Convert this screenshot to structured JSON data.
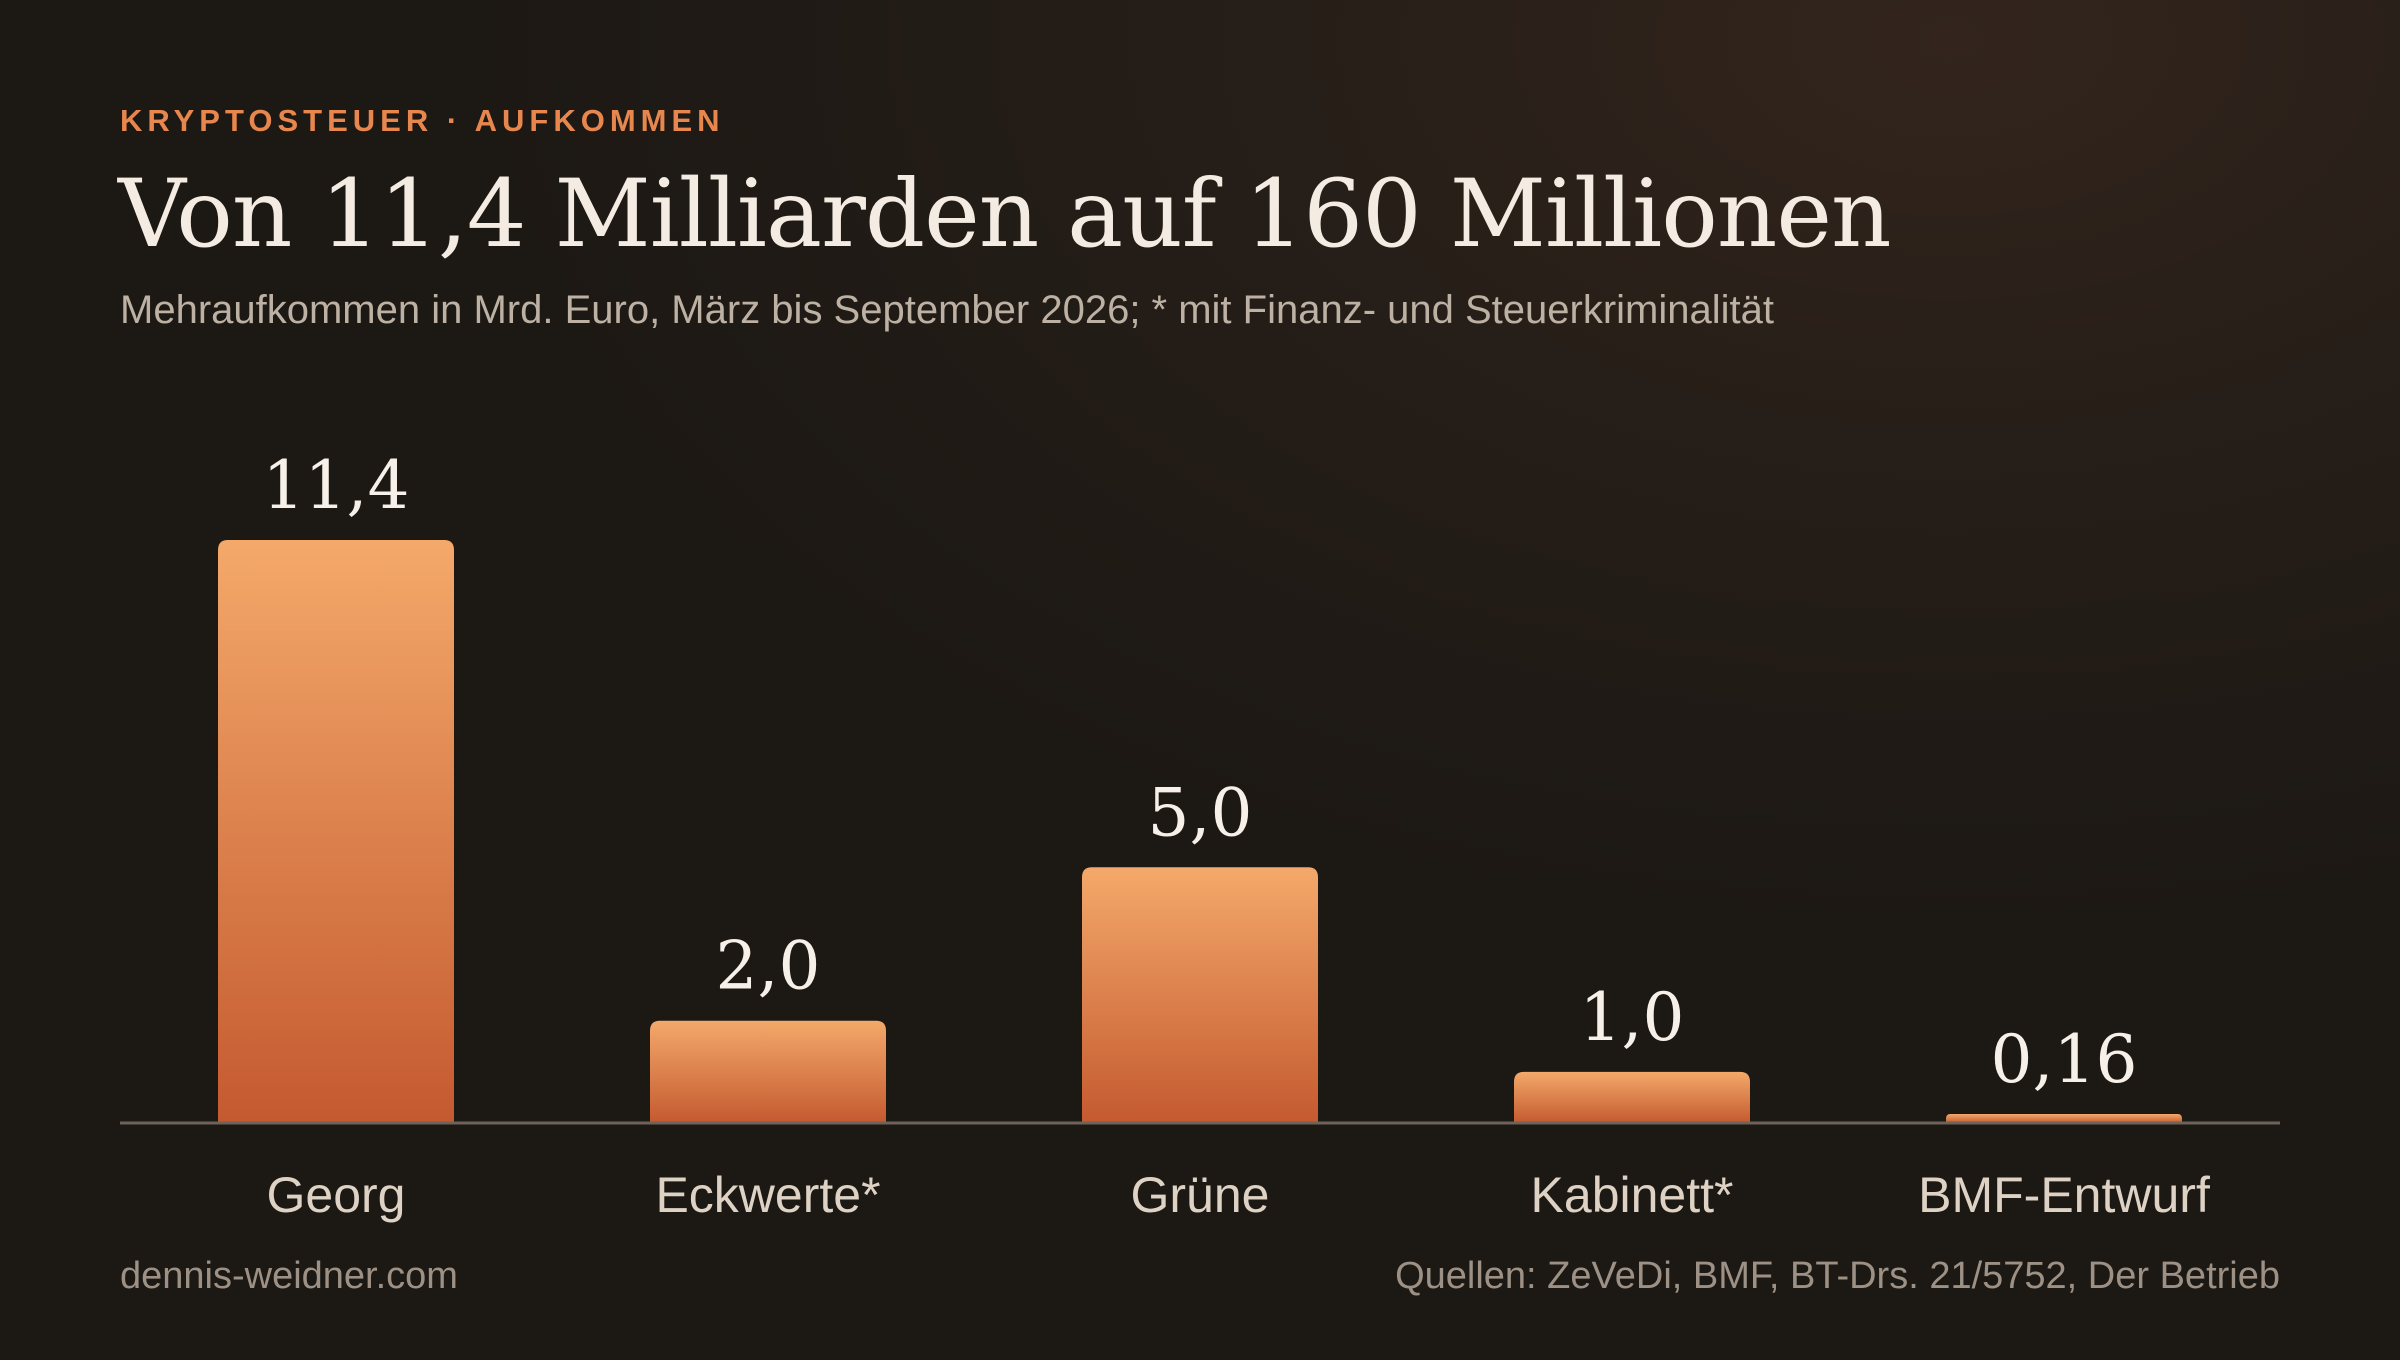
{
  "kicker": "KRYPTOSTEUER · AUFKOMMEN",
  "title": "Von 11,4 Milliarden auf 160 Millionen",
  "subtitle": "Mehraufkommen in Mrd. Euro, März bis September 2026; * mit Finanz- und Steuerkriminalität",
  "footer": {
    "site": "dennis-weidner.com",
    "sources": "Quellen: ZeVeDi, BMF, BT-Drs. 21/5752, Der Betrieb"
  },
  "colors": {
    "accent": "#e8874d",
    "bar_top": "#f4a96a",
    "bar_bottom": "#c45a30",
    "baseline": "#6e6358",
    "value_text": "#f6f0e8",
    "category_text": "#ddd2c4"
  },
  "chart_data": {
    "type": "bar",
    "categories": [
      "Georg",
      "Eckwerte*",
      "Grüne",
      "Kabinett*",
      "BMF-Entwurf"
    ],
    "values": [
      11.4,
      2.0,
      5.0,
      1.0,
      0.16
    ],
    "value_labels": [
      "11,4",
      "2,0",
      "5,0",
      "1,0",
      "0,16"
    ],
    "unit": "Mrd. Euro",
    "ylim": [
      0,
      11.4
    ],
    "grid": false,
    "legend": "none"
  }
}
